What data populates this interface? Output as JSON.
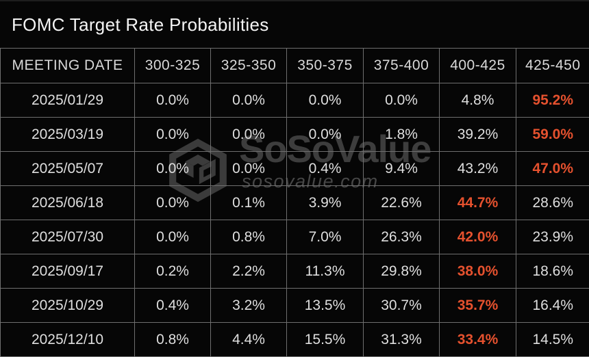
{
  "header": {
    "title": "FOMC Target Rate Probabilities"
  },
  "watermark": {
    "brand": "SoSoValue",
    "domain": "sosovalue.com",
    "icon": "cube-logo-icon"
  },
  "colors": {
    "background": "#060606",
    "grid_line": "#6f6f6f",
    "text_primary": "#dfdfdf",
    "title_text": "#f4f4f4",
    "highlight": "#e5512e",
    "watermark_gray": "#3d3d3d"
  },
  "chart_data": {
    "type": "table",
    "title": "FOMC Target Rate Probabilities",
    "columns": [
      "MEETING DATE",
      "300-325",
      "325-350",
      "350-375",
      "375-400",
      "400-425",
      "425-450"
    ],
    "rows": [
      {
        "date": "2025/01/29",
        "values": [
          "0.0%",
          "0.0%",
          "0.0%",
          "0.0%",
          "4.8%",
          "95.2%"
        ],
        "highlight_col": 5
      },
      {
        "date": "2025/03/19",
        "values": [
          "0.0%",
          "0.0%",
          "0.0%",
          "1.8%",
          "39.2%",
          "59.0%"
        ],
        "highlight_col": 5
      },
      {
        "date": "2025/05/07",
        "values": [
          "0.0%",
          "0.0%",
          "0.4%",
          "9.4%",
          "43.2%",
          "47.0%"
        ],
        "highlight_col": 5
      },
      {
        "date": "2025/06/18",
        "values": [
          "0.0%",
          "0.1%",
          "3.9%",
          "22.6%",
          "44.7%",
          "28.6%"
        ],
        "highlight_col": 4
      },
      {
        "date": "2025/07/30",
        "values": [
          "0.0%",
          "0.8%",
          "7.0%",
          "26.3%",
          "42.0%",
          "23.9%"
        ],
        "highlight_col": 4
      },
      {
        "date": "2025/09/17",
        "values": [
          "0.2%",
          "2.2%",
          "11.3%",
          "29.8%",
          "38.0%",
          "18.6%"
        ],
        "highlight_col": 4
      },
      {
        "date": "2025/10/29",
        "values": [
          "0.4%",
          "3.2%",
          "13.5%",
          "30.7%",
          "35.7%",
          "16.4%"
        ],
        "highlight_col": 4
      },
      {
        "date": "2025/12/10",
        "values": [
          "0.8%",
          "4.4%",
          "15.5%",
          "31.3%",
          "33.4%",
          "14.5%"
        ],
        "highlight_col": 4
      }
    ]
  }
}
